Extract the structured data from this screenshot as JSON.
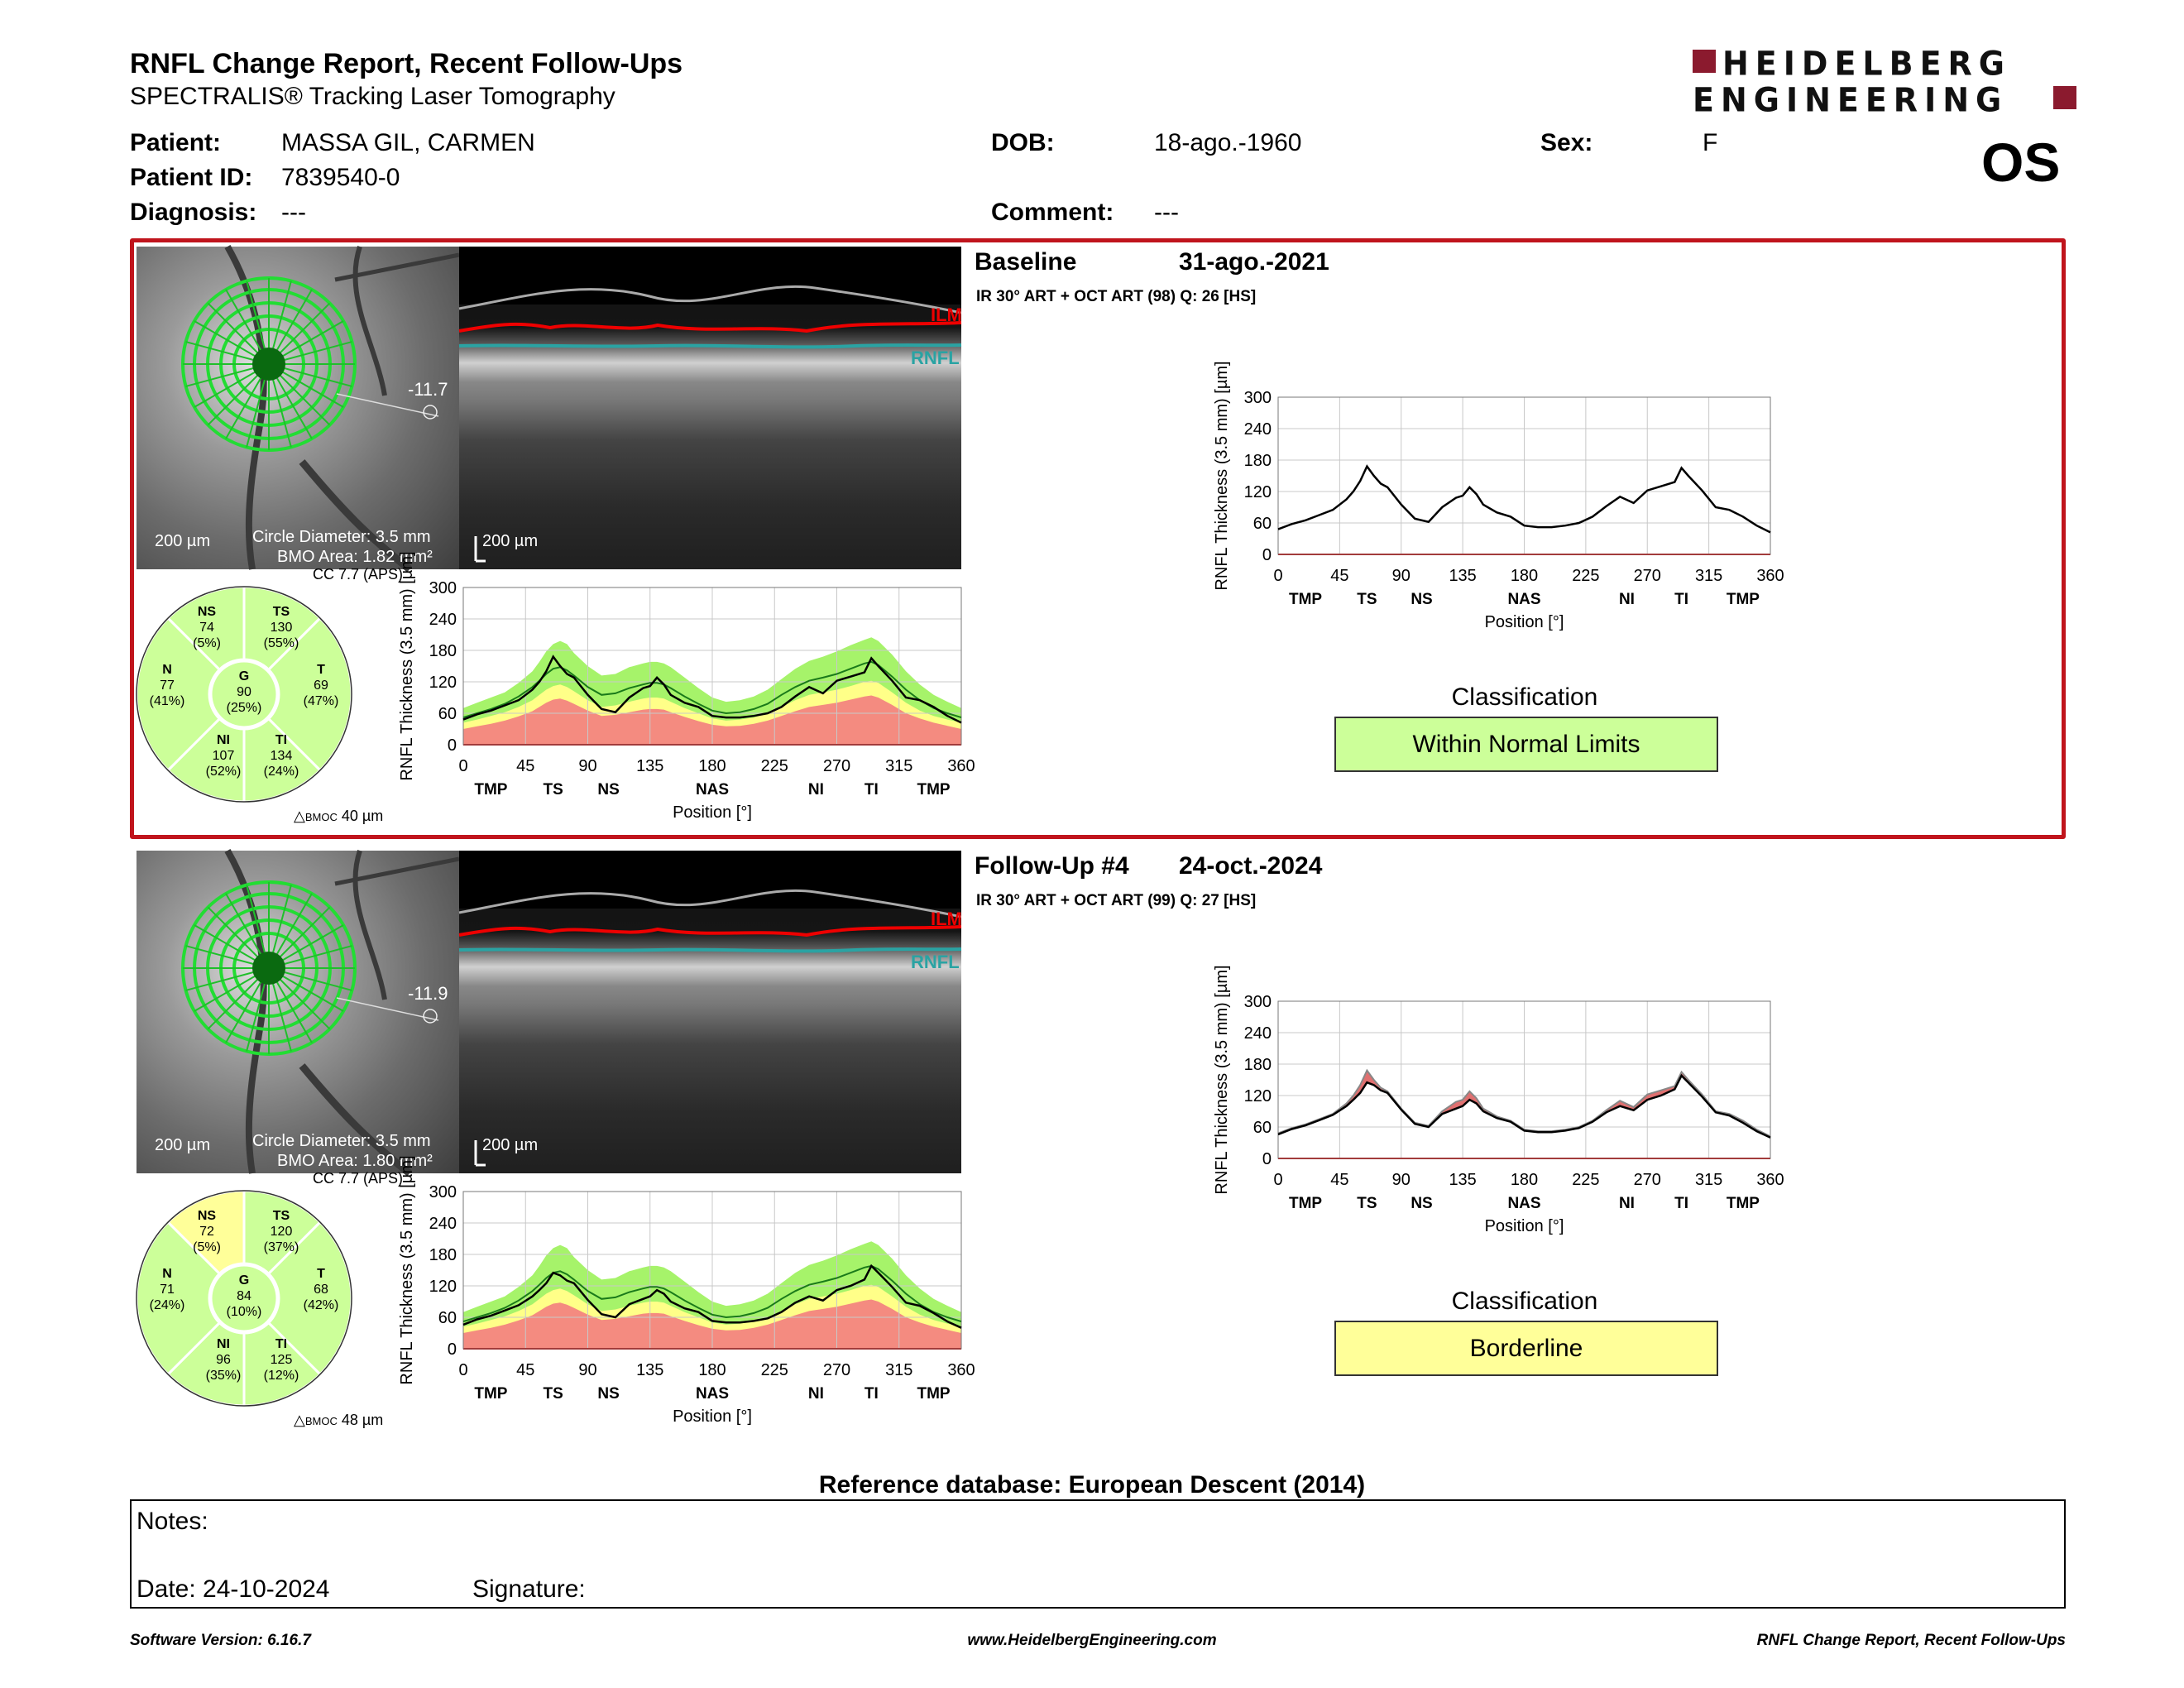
{
  "header": {
    "title": "RNFL Change Report, Recent Follow-Ups",
    "subtitle": "SPECTRALIS® Tracking Laser Tomography",
    "logo_line1": "HEIDELBERG",
    "logo_line2": "ENGINEERING",
    "eye": "OS"
  },
  "patient": {
    "patient_label": "Patient:",
    "patient_value": "MASSA GIL, CARMEN",
    "id_label": "Patient ID:",
    "id_value": "7839540-0",
    "diagnosis_label": "Diagnosis:",
    "diagnosis_value": "---",
    "dob_label": "DOB:",
    "dob_value": "18-ago.-1960",
    "comment_label": "Comment:",
    "comment_value": "---",
    "sex_label": "Sex:",
    "sex_value": "F"
  },
  "exams": [
    {
      "label": "Baseline",
      "date": "31-ago.-2021",
      "scan_info": "IR 30° ART + OCT ART (98) Q: 26 [HS]",
      "angle": "-11.7",
      "scale_fundus": "200 µm",
      "circle_diameter": "Circle Diameter: 3.5 mm",
      "bmo_area": "BMO Area: 1.82 mm²",
      "scale_oct": "200 µm",
      "ilm": "ILM",
      "rnfl": "RNFL",
      "cc": "CC 7.7 (APS)",
      "bmoc": "40 µm",
      "classification_label": "Classification",
      "classification": "Within Normal Limits",
      "classification_color": "#ccff99",
      "sectors": {
        "NS": {
          "name": "NS",
          "value": "74",
          "pct": "(5%)",
          "color": "#ccff99"
        },
        "TS": {
          "name": "TS",
          "value": "130",
          "pct": "(55%)",
          "color": "#ccff99"
        },
        "N": {
          "name": "N",
          "value": "77",
          "pct": "(41%)",
          "color": "#ccff99"
        },
        "G": {
          "name": "G",
          "value": "90",
          "pct": "(25%)",
          "color": "#ccff99"
        },
        "T": {
          "name": "T",
          "value": "69",
          "pct": "(47%)",
          "color": "#ccff99"
        },
        "NI": {
          "name": "NI",
          "value": "107",
          "pct": "(52%)",
          "color": "#ccff99"
        },
        "TI": {
          "name": "TI",
          "value": "134",
          "pct": "(24%)",
          "color": "#ccff99"
        }
      }
    },
    {
      "label": "Follow-Up #4",
      "date": "24-oct.-2024",
      "scan_info": "IR 30° ART + OCT ART (99) Q: 27 [HS]",
      "angle": "-11.9",
      "scale_fundus": "200 µm",
      "circle_diameter": "Circle Diameter: 3.5 mm",
      "bmo_area": "BMO Area: 1.80 mm²",
      "scale_oct": "200 µm",
      "ilm": "ILM",
      "rnfl": "RNFL",
      "cc": "CC 7.7 (APS)",
      "bmoc": "48 µm",
      "classification_label": "Classification",
      "classification": "Borderline",
      "classification_color": "#ffff99",
      "sectors": {
        "NS": {
          "name": "NS",
          "value": "72",
          "pct": "(5%)",
          "color": "#ffff99"
        },
        "TS": {
          "name": "TS",
          "value": "120",
          "pct": "(37%)",
          "color": "#ccff99"
        },
        "N": {
          "name": "N",
          "value": "71",
          "pct": "(24%)",
          "color": "#ccff99"
        },
        "G": {
          "name": "G",
          "value": "84",
          "pct": "(10%)",
          "color": "#ccff99"
        },
        "T": {
          "name": "T",
          "value": "68",
          "pct": "(42%)",
          "color": "#ccff99"
        },
        "NI": {
          "name": "NI",
          "value": "96",
          "pct": "(35%)",
          "color": "#ccff99"
        },
        "TI": {
          "name": "TI",
          "value": "125",
          "pct": "(12%)",
          "color": "#ccff99"
        }
      }
    }
  ],
  "chart_data": [
    {
      "type": "line",
      "id": "baseline-profile",
      "ylabel": "RNFL Thickness (3.5 mm) [µm]",
      "xlabel": "Position [°]",
      "xlim": [
        0,
        360
      ],
      "ylim": [
        0,
        300
      ],
      "x_ticks": [
        0,
        45,
        90,
        135,
        180,
        225,
        270,
        315,
        360
      ],
      "y_ticks": [
        0,
        60,
        120,
        180,
        240,
        300
      ],
      "region_labels": [
        {
          "label": "TMP",
          "x": 20
        },
        {
          "label": "TS",
          "x": 65
        },
        {
          "label": "NS",
          "x": 105
        },
        {
          "label": "NAS",
          "x": 180
        },
        {
          "label": "NI",
          "x": 255
        },
        {
          "label": "TI",
          "x": 295
        },
        {
          "label": "TMP",
          "x": 340
        }
      ],
      "x": [
        0,
        10,
        20,
        30,
        40,
        50,
        55,
        60,
        65,
        70,
        75,
        80,
        90,
        100,
        110,
        120,
        130,
        135,
        140,
        145,
        150,
        160,
        170,
        180,
        190,
        200,
        210,
        220,
        230,
        240,
        250,
        260,
        270,
        280,
        290,
        295,
        300,
        310,
        320,
        330,
        340,
        350,
        360
      ],
      "series": [
        {
          "values": [
            48,
            58,
            65,
            75,
            85,
            105,
            120,
            140,
            168,
            150,
            135,
            128,
            95,
            68,
            62,
            90,
            108,
            112,
            128,
            115,
            95,
            80,
            72,
            55,
            52,
            52,
            55,
            60,
            72,
            92,
            110,
            98,
            122,
            130,
            138,
            165,
            150,
            122,
            90,
            85,
            72,
            55,
            42
          ]
        }
      ]
    },
    {
      "type": "line",
      "id": "followup-profile",
      "ylabel": "RNFL Thickness (3.5 mm) [µm]",
      "xlabel": "Position [°]",
      "xlim": [
        0,
        360
      ],
      "ylim": [
        0,
        300
      ],
      "x_ticks": [
        0,
        45,
        90,
        135,
        180,
        225,
        270,
        315,
        360
      ],
      "y_ticks": [
        0,
        60,
        120,
        180,
        240,
        300
      ],
      "region_labels": [
        {
          "label": "TMP",
          "x": 20
        },
        {
          "label": "TS",
          "x": 65
        },
        {
          "label": "NS",
          "x": 105
        },
        {
          "label": "NAS",
          "x": 180
        },
        {
          "label": "NI",
          "x": 255
        },
        {
          "label": "TI",
          "x": 295
        },
        {
          "label": "TMP",
          "x": 340
        }
      ],
      "x": [
        0,
        10,
        20,
        30,
        40,
        50,
        55,
        60,
        65,
        70,
        75,
        80,
        90,
        100,
        110,
        120,
        130,
        135,
        140,
        145,
        150,
        160,
        170,
        180,
        190,
        200,
        210,
        220,
        230,
        240,
        250,
        260,
        270,
        280,
        290,
        295,
        300,
        310,
        320,
        330,
        340,
        350,
        360
      ],
      "series": [
        {
          "name": "baseline",
          "values": [
            48,
            58,
            65,
            75,
            85,
            105,
            120,
            140,
            168,
            150,
            135,
            128,
            95,
            68,
            62,
            90,
            108,
            112,
            128,
            115,
            95,
            80,
            72,
            55,
            52,
            52,
            55,
            60,
            72,
            92,
            110,
            98,
            122,
            130,
            138,
            165,
            150,
            122,
            90,
            85,
            72,
            55,
            42
          ]
        },
        {
          "name": "follow-up",
          "values": [
            46,
            56,
            63,
            73,
            83,
            100,
            112,
            125,
            145,
            140,
            130,
            125,
            93,
            66,
            60,
            85,
            95,
            100,
            112,
            105,
            90,
            77,
            70,
            53,
            50,
            50,
            53,
            58,
            70,
            88,
            100,
            92,
            112,
            120,
            132,
            158,
            145,
            118,
            88,
            82,
            68,
            52,
            40
          ]
        }
      ]
    },
    {
      "type": "line",
      "id": "baseline-normative",
      "ylabel": "RNFL Thickness (3.5 mm) [µm]",
      "xlabel": "Position [°]",
      "xlim": [
        0,
        360
      ],
      "ylim": [
        0,
        300
      ],
      "x_ticks": [
        0,
        45,
        90,
        135,
        180,
        225,
        270,
        315,
        360
      ],
      "y_ticks": [
        0,
        60,
        120,
        180,
        240,
        300
      ],
      "region_labels": [
        {
          "label": "TMP",
          "x": 20
        },
        {
          "label": "TS",
          "x": 65
        },
        {
          "label": "NS",
          "x": 105
        },
        {
          "label": "NAS",
          "x": 180
        },
        {
          "label": "NI",
          "x": 255
        },
        {
          "label": "TI",
          "x": 295
        },
        {
          "label": "TMP",
          "x": 340
        }
      ],
      "x": [
        0,
        10,
        20,
        30,
        40,
        50,
        55,
        60,
        65,
        70,
        75,
        80,
        90,
        100,
        110,
        120,
        130,
        135,
        140,
        145,
        150,
        160,
        170,
        180,
        190,
        200,
        210,
        220,
        230,
        240,
        250,
        260,
        270,
        280,
        290,
        295,
        300,
        310,
        320,
        330,
        340,
        350,
        360
      ],
      "series": [
        {
          "name": "measured",
          "values": [
            48,
            58,
            65,
            75,
            85,
            105,
            120,
            140,
            168,
            150,
            135,
            128,
            95,
            68,
            62,
            90,
            108,
            112,
            128,
            115,
            95,
            80,
            72,
            55,
            52,
            52,
            55,
            60,
            72,
            92,
            110,
            98,
            122,
            130,
            138,
            165,
            150,
            122,
            90,
            85,
            72,
            55,
            42
          ]
        },
        {
          "name": "mean",
          "values": [
            52,
            60,
            68,
            78,
            92,
            110,
            122,
            135,
            145,
            148,
            142,
            132,
            110,
            95,
            98,
            108,
            115,
            118,
            118,
            115,
            108,
            92,
            78,
            65,
            60,
            62,
            68,
            78,
            95,
            110,
            122,
            128,
            135,
            145,
            155,
            158,
            152,
            130,
            105,
            85,
            70,
            60,
            52
          ]
        }
      ],
      "band_upper": [
        70,
        80,
        90,
        100,
        118,
        140,
        158,
        178,
        192,
        198,
        192,
        175,
        150,
        132,
        135,
        148,
        155,
        158,
        158,
        155,
        148,
        128,
        108,
        90,
        82,
        85,
        92,
        105,
        125,
        145,
        160,
        168,
        178,
        190,
        200,
        205,
        198,
        172,
        140,
        115,
        95,
        82,
        70
      ],
      "band_mid_low": [
        42,
        48,
        55,
        62,
        72,
        85,
        95,
        105,
        112,
        115,
        110,
        102,
        85,
        72,
        75,
        82,
        88,
        90,
        90,
        88,
        82,
        70,
        60,
        50,
        46,
        48,
        52,
        60,
        72,
        85,
        95,
        100,
        105,
        112,
        120,
        122,
        118,
        100,
        80,
        65,
        55,
        48,
        42
      ],
      "band_red": [
        30,
        35,
        40,
        46,
        54,
        64,
        72,
        80,
        86,
        88,
        84,
        78,
        65,
        55,
        57,
        62,
        67,
        68,
        68,
        67,
        62,
        53,
        45,
        38,
        35,
        36,
        40,
        46,
        55,
        64,
        72,
        76,
        80,
        86,
        92,
        94,
        90,
        76,
        60,
        50,
        42,
        36,
        30
      ]
    },
    {
      "type": "line",
      "id": "followup-normative",
      "ylabel": "RNFL Thickness (3.5 mm) [µm]",
      "xlabel": "Position [°]",
      "xlim": [
        0,
        360
      ],
      "ylim": [
        0,
        300
      ],
      "x_ticks": [
        0,
        45,
        90,
        135,
        180,
        225,
        270,
        315,
        360
      ],
      "y_ticks": [
        0,
        60,
        120,
        180,
        240,
        300
      ],
      "region_labels": [
        {
          "label": "TMP",
          "x": 20
        },
        {
          "label": "TS",
          "x": 65
        },
        {
          "label": "NS",
          "x": 105
        },
        {
          "label": "NAS",
          "x": 180
        },
        {
          "label": "NI",
          "x": 255
        },
        {
          "label": "TI",
          "x": 295
        },
        {
          "label": "TMP",
          "x": 340
        }
      ],
      "x": [
        0,
        10,
        20,
        30,
        40,
        50,
        55,
        60,
        65,
        70,
        75,
        80,
        90,
        100,
        110,
        120,
        130,
        135,
        140,
        145,
        150,
        160,
        170,
        180,
        190,
        200,
        210,
        220,
        230,
        240,
        250,
        260,
        270,
        280,
        290,
        295,
        300,
        310,
        320,
        330,
        340,
        350,
        360
      ],
      "series": [
        {
          "name": "measured",
          "values": [
            46,
            56,
            63,
            73,
            83,
            100,
            112,
            125,
            145,
            140,
            130,
            125,
            93,
            66,
            60,
            85,
            95,
            100,
            112,
            105,
            90,
            77,
            70,
            53,
            50,
            50,
            53,
            58,
            70,
            88,
            100,
            92,
            112,
            120,
            132,
            158,
            145,
            118,
            88,
            82,
            68,
            52,
            40
          ]
        },
        {
          "name": "mean",
          "values": [
            52,
            60,
            68,
            78,
            92,
            110,
            122,
            135,
            145,
            148,
            142,
            132,
            110,
            95,
            98,
            108,
            115,
            118,
            118,
            115,
            108,
            92,
            78,
            65,
            60,
            62,
            68,
            78,
            95,
            110,
            122,
            128,
            135,
            145,
            155,
            158,
            152,
            130,
            105,
            85,
            70,
            60,
            52
          ]
        }
      ],
      "band_upper": [
        70,
        80,
        90,
        100,
        118,
        140,
        158,
        178,
        192,
        198,
        192,
        175,
        150,
        132,
        135,
        148,
        155,
        158,
        158,
        155,
        148,
        128,
        108,
        90,
        82,
        85,
        92,
        105,
        125,
        145,
        160,
        168,
        178,
        190,
        200,
        205,
        198,
        172,
        140,
        115,
        95,
        82,
        70
      ],
      "band_mid_low": [
        42,
        48,
        55,
        62,
        72,
        85,
        95,
        105,
        112,
        115,
        110,
        102,
        85,
        72,
        75,
        82,
        88,
        90,
        90,
        88,
        82,
        70,
        60,
        50,
        46,
        48,
        52,
        60,
        72,
        85,
        95,
        100,
        105,
        112,
        120,
        122,
        118,
        100,
        80,
        65,
        55,
        48,
        42
      ],
      "band_red": [
        30,
        35,
        40,
        46,
        54,
        64,
        72,
        80,
        86,
        88,
        84,
        78,
        65,
        55,
        57,
        62,
        67,
        68,
        68,
        67,
        62,
        53,
        45,
        38,
        35,
        36,
        40,
        46,
        55,
        64,
        72,
        76,
        80,
        86,
        92,
        94,
        90,
        76,
        60,
        50,
        42,
        36,
        30
      ]
    }
  ],
  "reference": "Reference database: European Descent (2014)",
  "notes": {
    "notes_label": "Notes:",
    "date_label": "Date: 24-10-2024",
    "signature_label": "Signature:"
  },
  "footer": {
    "software": "Software Version: 6.16.7",
    "url": "www.HeidelbergEngineering.com",
    "report_name": "RNFL Change Report, Recent Follow-Ups"
  }
}
